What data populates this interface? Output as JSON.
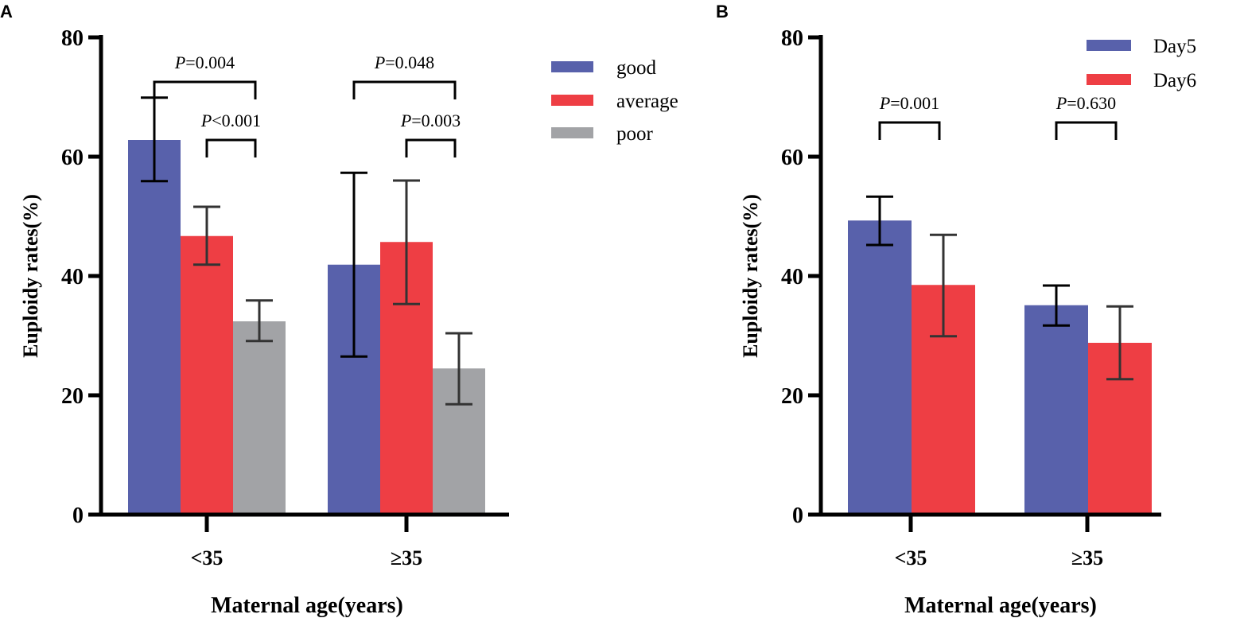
{
  "chart_data": [
    {
      "panel": "A",
      "type": "bar",
      "title": "",
      "xlabel": "Maternal age(years)",
      "ylabel": "Euploidy rates(%)",
      "ylim": [
        0,
        80
      ],
      "yticks": [
        0,
        20,
        40,
        60,
        80
      ],
      "categories": [
        "<35",
        "≥35"
      ],
      "legend_position": "top-right",
      "series": [
        {
          "name": "good",
          "color": "#5861ab",
          "values": [
            62.8,
            41.9
          ],
          "err_low": [
            55.9,
            26.5
          ],
          "err_high": [
            69.9,
            57.3
          ]
        },
        {
          "name": "average",
          "color": "#ee3e44",
          "values": [
            46.7,
            45.7
          ],
          "err_low": [
            41.9,
            35.3
          ],
          "err_high": [
            51.6,
            56.0
          ]
        },
        {
          "name": "poor",
          "color": "#a2a3a6",
          "values": [
            32.4,
            24.5
          ],
          "err_low": [
            29.1,
            18.5
          ],
          "err_high": [
            35.9,
            30.4
          ]
        }
      ],
      "annotations": [
        {
          "p": "P",
          "text": "=0.004",
          "category": 0,
          "from": 0,
          "to": 2,
          "level": 2
        },
        {
          "p": "P",
          "text": "<0.001",
          "category": 0,
          "from": 1,
          "to": 2,
          "level": 1
        },
        {
          "p": "P",
          "text": "=0.048",
          "category": 1,
          "from": 0,
          "to": 2,
          "level": 2
        },
        {
          "p": "P",
          "text": "=0.003",
          "category": 1,
          "from": 1,
          "to": 2,
          "level": 1
        }
      ]
    },
    {
      "panel": "B",
      "type": "bar",
      "title": "",
      "xlabel": "Maternal age(years)",
      "ylabel": "Euploidy rates(%)",
      "ylim": [
        0,
        80
      ],
      "yticks": [
        0,
        20,
        40,
        60,
        80
      ],
      "categories": [
        "<35",
        "≥35"
      ],
      "legend_position": "top-right",
      "series": [
        {
          "name": "Day5",
          "color": "#5861ab",
          "values": [
            49.3,
            35.1
          ],
          "err_low": [
            45.2,
            31.7
          ],
          "err_high": [
            53.3,
            38.4
          ]
        },
        {
          "name": "Day6",
          "color": "#ee3e44",
          "values": [
            38.5,
            28.8
          ],
          "err_low": [
            29.9,
            22.7
          ],
          "err_high": [
            46.9,
            34.9
          ]
        }
      ],
      "annotations": [
        {
          "p": "P",
          "text": "=0.001",
          "category": 0,
          "from": 0,
          "to": 1,
          "level": 1
        },
        {
          "p": "P",
          "text": "=0.630",
          "category": 1,
          "from": 0,
          "to": 1,
          "level": 1
        }
      ]
    }
  ]
}
